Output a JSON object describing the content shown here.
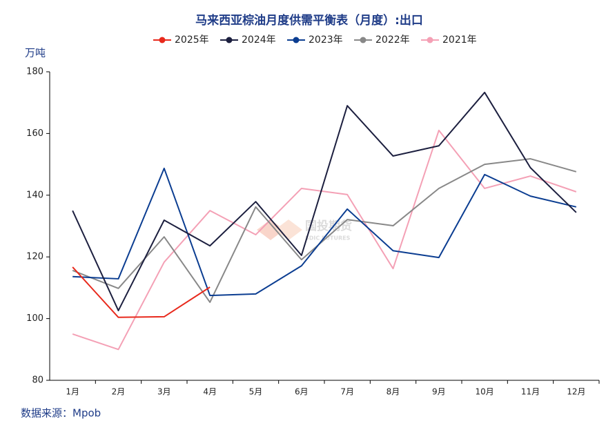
{
  "chart_data": {
    "type": "line",
    "title": "马来西亚棕油月度供需平衡表（月度）:出口",
    "y_axis_label": "万吨",
    "source": "数据来源：Mpob",
    "watermark": "国投期货",
    "watermark_sub": "SDIC FUTURES",
    "categories": [
      "1月",
      "2月",
      "3月",
      "4月",
      "5月",
      "6月",
      "7月",
      "8月",
      "9月",
      "10月",
      "11月",
      "12月"
    ],
    "series": [
      {
        "name": "2025年",
        "color": "#e8291c",
        "values": [
          116.7,
          100.4,
          100.6,
          110.2,
          null,
          null,
          null,
          null,
          null,
          null,
          null,
          null
        ]
      },
      {
        "name": "2024年",
        "color": "#1c1f3f",
        "values": [
          135,
          102.6,
          131.9,
          123.6,
          137.9,
          120.5,
          169,
          152.7,
          156,
          173.3,
          148.9,
          134.4
        ]
      },
      {
        "name": "2023年",
        "color": "#0b3d91",
        "values": [
          113.6,
          112.9,
          148.7,
          107.5,
          108,
          117.1,
          135.5,
          122,
          119.8,
          146.7,
          139.7,
          136.2
        ]
      },
      {
        "name": "2022年",
        "color": "#888888",
        "values": [
          115.6,
          109.8,
          126.5,
          105.3,
          136.2,
          119.1,
          132.1,
          130.1,
          142.2,
          150,
          151.8,
          147.6
        ]
      },
      {
        "name": "2021年",
        "color": "#f4a0b5",
        "values": [
          95,
          90,
          118.3,
          135,
          127.2,
          142.2,
          140.2,
          116.2,
          161,
          142.2,
          146.2,
          141.1
        ]
      }
    ],
    "ylim": [
      80,
      180
    ],
    "yticks": [
      80,
      100,
      120,
      140,
      160,
      180
    ],
    "grid": false,
    "legend": "top"
  }
}
